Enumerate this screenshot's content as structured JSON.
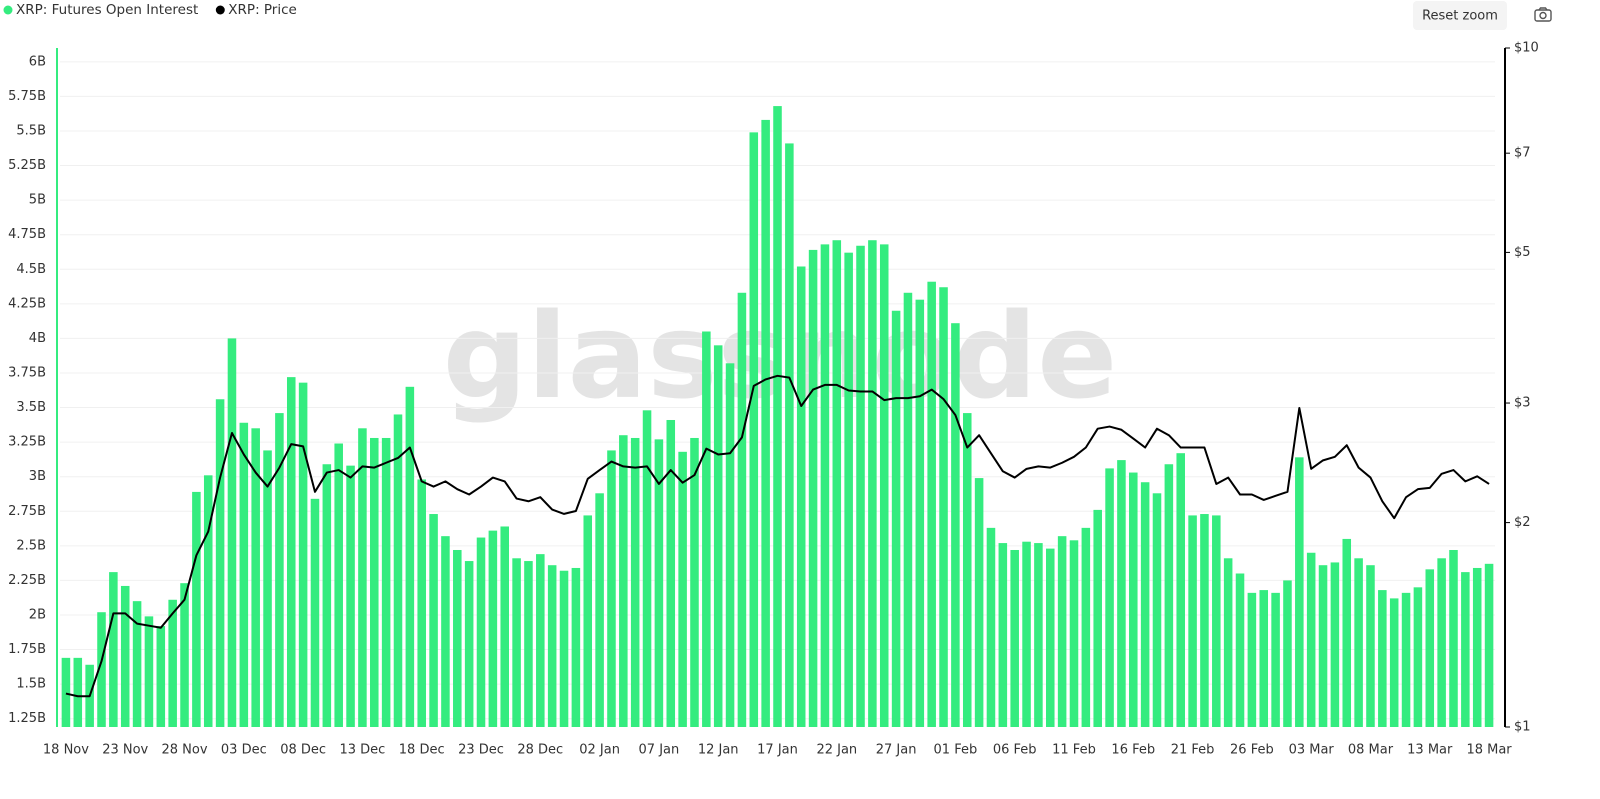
{
  "chart_data": {
    "type": "bar",
    "watermark": "glassnode",
    "categories": [
      "18 Nov",
      null,
      null,
      null,
      null,
      "23 Nov",
      null,
      null,
      null,
      null,
      "28 Nov",
      null,
      null,
      null,
      null,
      "03 Dec",
      null,
      null,
      null,
      null,
      "08 Dec",
      null,
      null,
      null,
      null,
      "13 Dec",
      null,
      null,
      null,
      null,
      "18 Dec",
      null,
      null,
      null,
      null,
      "23 Dec",
      null,
      null,
      null,
      null,
      "28 Dec",
      null,
      null,
      null,
      null,
      "02 Jan",
      null,
      null,
      null,
      null,
      "07 Jan",
      null,
      null,
      null,
      null,
      "12 Jan",
      null,
      null,
      null,
      null,
      "17 Jan",
      null,
      null,
      null,
      null,
      "22 Jan",
      null,
      null,
      null,
      null,
      "27 Jan",
      null,
      null,
      null,
      null,
      "01 Feb",
      null,
      null,
      null,
      null,
      "06 Feb",
      null,
      null,
      null,
      null,
      "11 Feb",
      null,
      null,
      null,
      null,
      "16 Feb",
      null,
      null,
      null,
      null,
      "21 Feb",
      null,
      null,
      null,
      null,
      "26 Feb",
      null,
      null,
      null,
      null,
      "03 Mar",
      null,
      null,
      null,
      null,
      "08 Mar",
      null,
      null,
      null,
      null,
      "13 Mar",
      null,
      null,
      null,
      null,
      "18 Mar"
    ],
    "series": [
      {
        "name": "XRP: Futures Open Interest",
        "type": "bar",
        "axis": "y",
        "color": "#34ec7f",
        "values": [
          1.69,
          1.69,
          1.64,
          2.02,
          2.31,
          2.21,
          2.1,
          1.99,
          1.92,
          2.11,
          2.23,
          2.89,
          3.01,
          3.56,
          4.0,
          3.39,
          3.35,
          3.19,
          3.46,
          3.72,
          3.68,
          2.84,
          3.09,
          3.24,
          3.08,
          3.35,
          3.28,
          3.28,
          3.45,
          3.65,
          2.98,
          2.73,
          2.57,
          2.47,
          2.39,
          2.56,
          2.61,
          2.64,
          2.41,
          2.39,
          2.44,
          2.36,
          2.32,
          2.34,
          2.72,
          2.88,
          3.19,
          3.3,
          3.28,
          3.48,
          3.27,
          3.41,
          3.18,
          3.28,
          4.05,
          3.95,
          3.82,
          4.33,
          5.49,
          5.58,
          5.68,
          5.41,
          4.52,
          4.64,
          4.68,
          4.71,
          4.62,
          4.67,
          4.71,
          4.68,
          4.2,
          4.33,
          4.28,
          4.41,
          4.37,
          4.11,
          3.46,
          2.99,
          2.63,
          2.52,
          2.47,
          2.53,
          2.52,
          2.48,
          2.57,
          2.54,
          2.63,
          2.76,
          3.06,
          3.12,
          3.03,
          2.96,
          2.88,
          3.09,
          3.17,
          2.72,
          2.73,
          2.72,
          2.41,
          2.3,
          2.16,
          2.18,
          2.16,
          2.25,
          3.14,
          2.45,
          2.36,
          2.38,
          2.55,
          2.41,
          2.36,
          2.18,
          2.12,
          2.16,
          2.2,
          2.33,
          2.41,
          2.47,
          2.31,
          2.34,
          2.37
        ]
      },
      {
        "name": "XRP: Price",
        "type": "line",
        "axis": "y2",
        "color": "#000000",
        "values": [
          1.12,
          1.11,
          1.11,
          1.25,
          1.47,
          1.47,
          1.42,
          1.41,
          1.4,
          1.47,
          1.54,
          1.79,
          1.94,
          2.33,
          2.71,
          2.52,
          2.37,
          2.26,
          2.41,
          2.61,
          2.59,
          2.22,
          2.37,
          2.39,
          2.33,
          2.42,
          2.41,
          2.45,
          2.49,
          2.58,
          2.3,
          2.26,
          2.3,
          2.24,
          2.2,
          2.26,
          2.33,
          2.3,
          2.17,
          2.15,
          2.18,
          2.09,
          2.06,
          2.08,
          2.32,
          2.39,
          2.46,
          2.42,
          2.41,
          2.42,
          2.28,
          2.39,
          2.29,
          2.35,
          2.57,
          2.52,
          2.53,
          2.67,
          3.18,
          3.25,
          3.29,
          3.27,
          2.97,
          3.14,
          3.19,
          3.19,
          3.13,
          3.12,
          3.12,
          3.03,
          3.05,
          3.05,
          3.07,
          3.14,
          3.04,
          2.88,
          2.58,
          2.69,
          2.53,
          2.38,
          2.33,
          2.4,
          2.42,
          2.41,
          2.45,
          2.5,
          2.58,
          2.75,
          2.77,
          2.74,
          2.66,
          2.58,
          2.75,
          2.69,
          2.58,
          2.58,
          2.58,
          2.28,
          2.33,
          2.2,
          2.2,
          2.16,
          2.19,
          2.22,
          2.95,
          2.4,
          2.47,
          2.5,
          2.6,
          2.41,
          2.33,
          2.15,
          2.03,
          2.18,
          2.24,
          2.25,
          2.36,
          2.39,
          2.3,
          2.34,
          2.28
        ]
      }
    ],
    "ylim": [
      1.19,
      6.1
    ],
    "yticks": [
      {
        "value": 1.25,
        "label": "1.25B"
      },
      {
        "value": 1.5,
        "label": "1.5B"
      },
      {
        "value": 1.75,
        "label": "1.75B"
      },
      {
        "value": 2,
        "label": "2B"
      },
      {
        "value": 2.25,
        "label": "2.25B"
      },
      {
        "value": 2.5,
        "label": "2.5B"
      },
      {
        "value": 2.75,
        "label": "2.75B"
      },
      {
        "value": 3,
        "label": "3B"
      },
      {
        "value": 3.25,
        "label": "3.25B"
      },
      {
        "value": 3.5,
        "label": "3.5B"
      },
      {
        "value": 3.75,
        "label": "3.75B"
      },
      {
        "value": 4,
        "label": "4B"
      },
      {
        "value": 4.25,
        "label": "4.25B"
      },
      {
        "value": 4.5,
        "label": "4.5B"
      },
      {
        "value": 4.75,
        "label": "4.75B"
      },
      {
        "value": 5,
        "label": "5B"
      },
      {
        "value": 5.25,
        "label": "5.25B"
      },
      {
        "value": 5.5,
        "label": "5.5B"
      },
      {
        "value": 5.75,
        "label": "5.75B"
      },
      {
        "value": 6,
        "label": "6B"
      }
    ],
    "y2lim": [
      1,
      10
    ],
    "y2log": true,
    "y2ticks": [
      {
        "value": 1,
        "label": "$1"
      },
      {
        "value": 2,
        "label": "$2"
      },
      {
        "value": 3,
        "label": "$3"
      },
      {
        "value": 5,
        "label": "$5"
      },
      {
        "value": 7,
        "label": "$7"
      },
      {
        "value": 10,
        "label": "$10"
      }
    ],
    "grid": true
  },
  "toolbar": {
    "reset_zoom": "Reset zoom"
  }
}
